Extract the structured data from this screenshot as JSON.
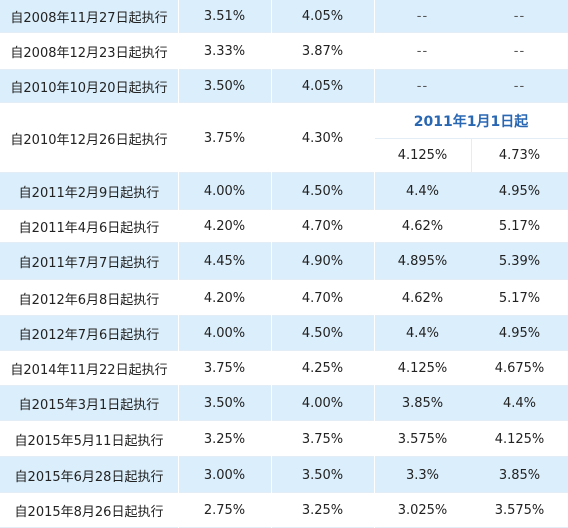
{
  "rows": [
    {
      "label": "自2008年11月27日起执行",
      "c1": "3.51%",
      "c2": "4.05%",
      "c3": "--",
      "c4": "--",
      "shaded": true
    },
    {
      "label": "自2008年12月23日起执行",
      "c1": "3.33%",
      "c2": "3.87%",
      "c3": "--",
      "c4": "--",
      "shaded": false
    },
    {
      "label": "自2010年10月20日起执行",
      "c1": "3.50%",
      "c2": "4.05%",
      "c3": "--",
      "c4": "--",
      "shaded": true
    },
    {
      "label": "自2010年12月26日起执行",
      "c1": "3.75%",
      "c2": "4.30%",
      "sub_header": "2011年1月1日起",
      "c3": "4.125%",
      "c4": "4.73%",
      "shaded": false
    },
    {
      "label": "自2011年2月9日起执行",
      "c1": "4.00%",
      "c2": "4.50%",
      "c3": "4.4%",
      "c4": "4.95%",
      "shaded": true
    },
    {
      "label": "自2011年4月6日起执行",
      "c1": "4.20%",
      "c2": "4.70%",
      "c3": "4.62%",
      "c4": "5.17%",
      "shaded": false
    },
    {
      "label": "自2011年7月7日起执行",
      "c1": "4.45%",
      "c2": "4.90%",
      "c3": "4.895%",
      "c4": "5.39%",
      "shaded": true
    },
    {
      "label": "自2012年6月8日起执行",
      "c1": "4.20%",
      "c2": "4.70%",
      "c3": "4.62%",
      "c4": "5.17%",
      "shaded": false
    },
    {
      "label": "自2012年7月6日起执行",
      "c1": "4.00%",
      "c2": "4.50%",
      "c3": "4.4%",
      "c4": "4.95%",
      "shaded": true
    },
    {
      "label": "自2014年11月22日起执行",
      "c1": "3.75%",
      "c2": "4.25%",
      "c3": "4.125%",
      "c4": "4.675%",
      "shaded": false
    },
    {
      "label": "自2015年3月1日起执行",
      "c1": "3.50%",
      "c2": "4.00%",
      "c3": "3.85%",
      "c4": "4.4%",
      "shaded": true
    },
    {
      "label": "自2015年5月11日起执行",
      "c1": "3.25%",
      "c2": "3.75%",
      "c3": "3.575%",
      "c4": "4.125%",
      "shaded": false
    },
    {
      "label": "自2015年6月28日起执行",
      "c1": "3.00%",
      "c2": "3.50%",
      "c3": "3.3%",
      "c4": "3.85%",
      "shaded": true
    },
    {
      "label": "自2015年8月26日起执行",
      "c1": "2.75%",
      "c2": "3.25%",
      "c3": "3.025%",
      "c4": "3.575%",
      "shaded": false
    }
  ]
}
